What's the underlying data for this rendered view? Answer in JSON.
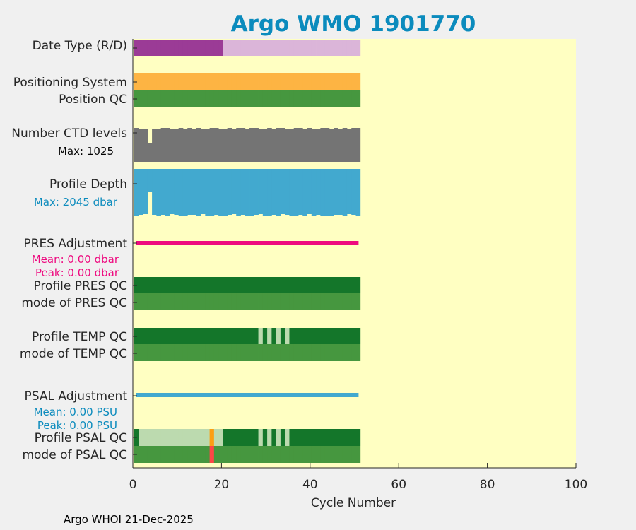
{
  "chart_data": {
    "type": "heatmap",
    "title": "Argo WMO 1901770",
    "xlabel": "Cycle Number",
    "xlim": [
      0,
      100
    ],
    "xticks": [
      "0",
      "20",
      "40",
      "60",
      "80",
      "100"
    ],
    "n_cycles": 51,
    "footer": "Argo WHOI 21-Dec-2025",
    "rows": {
      "date_type": {
        "label": "Date Type (R/D)",
        "purple_cycles": 20
      },
      "positioning": {
        "label": "Positioning System"
      },
      "position_qc": {
        "label": "Position QC"
      },
      "ctd_levels": {
        "label": "Number CTD levels",
        "note": "Max: 1025",
        "short_cycles": [
          3
        ]
      },
      "profile_depth": {
        "label": "Profile Depth",
        "note": "Max: 2045 dbar",
        "short_cycles": [
          3
        ]
      },
      "pres_adj": {
        "label": "PRES Adjustment",
        "mean": "Mean: 0.00 dbar",
        "peak": "Peak: 0.00 dbar"
      },
      "pres_qc": {
        "label": "Profile PRES QC"
      },
      "pres_mode": {
        "label": "mode of PRES QC"
      },
      "temp_qc": {
        "label": "Profile TEMP QC",
        "light_cycles": [
          28,
          30,
          32,
          34
        ]
      },
      "temp_mode": {
        "label": "mode of TEMP QC"
      },
      "psal_adj": {
        "label": "PSAL Adjustment",
        "mean": "Mean: 0.00 PSU",
        "peak": "Peak: 0.00 PSU"
      },
      "psal_qc": {
        "label": "Profile PSAL QC",
        "light_cycles": [
          1,
          2,
          3,
          4,
          5,
          6,
          7,
          8,
          9,
          10,
          11,
          12,
          13,
          14,
          15,
          16,
          18,
          19,
          28,
          30,
          32,
          34
        ],
        "orange_cycles": [
          17
        ]
      },
      "psal_mode": {
        "label": "mode of PSAL QC",
        "red_cycles": [
          17
        ]
      }
    }
  },
  "colors": {
    "bg": "#ffffc2",
    "title": "#0b8bbd",
    "purple": "#9b3b96",
    "lightpurple": "#dbb5d9",
    "orange": "#fdb443",
    "green": "#46973f",
    "darkgreen": "#14762a",
    "lightgreen": "#bcdaaf",
    "gray": "#747474",
    "blue": "#42a9cf",
    "pink": "#ee0a7f",
    "qcorange": "#fc9e13",
    "red": "#fd4646"
  }
}
